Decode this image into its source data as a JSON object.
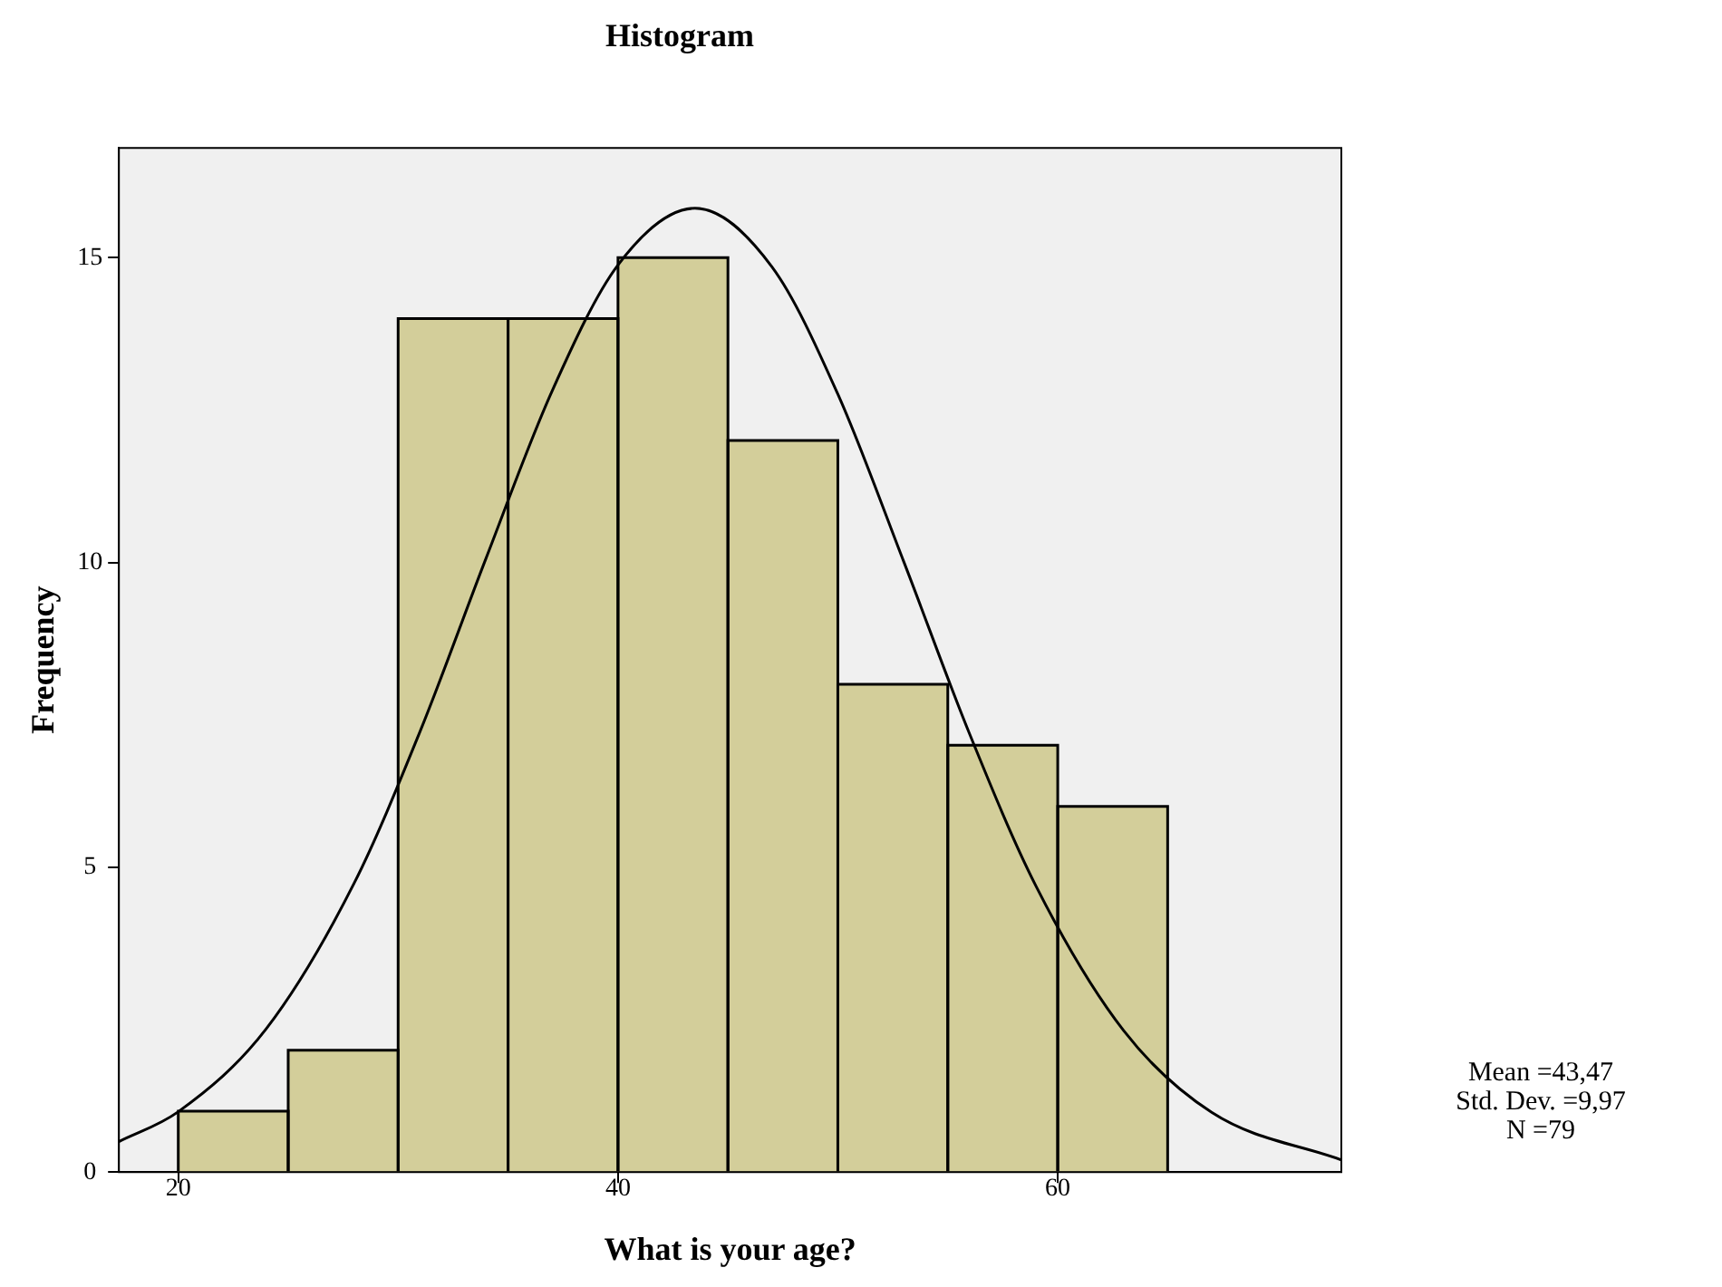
{
  "chart_data": {
    "type": "histogram",
    "title": "Histogram",
    "xlabel": "What is your age?",
    "ylabel": "Frequency",
    "bins": [
      20,
      25,
      30,
      35,
      40,
      45,
      50,
      55,
      60,
      65
    ],
    "values": [
      1,
      2,
      14,
      14,
      15,
      12,
      8,
      7,
      6
    ],
    "color": "#d3ce9a",
    "xlim": [
      17.3,
      72.9
    ],
    "ylim": [
      0,
      16.8
    ],
    "xticks": [
      20,
      40,
      60
    ],
    "yticks": [
      0,
      5,
      10,
      15
    ],
    "series": [
      {
        "type": "line",
        "color": "#000000",
        "x": [
          17.3,
          20,
          24,
          28,
          31,
          34,
          37,
          40,
          43.5,
          47,
          50,
          53,
          56,
          59,
          63,
          67,
          72.9
        ],
        "values": [
          0.5,
          0.99,
          2.35,
          4.74,
          7.23,
          10.07,
          12.81,
          14.88,
          15.81,
          14.85,
          12.76,
          10.01,
          7.18,
          4.7,
          2.32,
          0.98,
          0.2
        ]
      }
    ],
    "annotations": [
      "Mean =43,47",
      "Std. Dev. =9,97",
      "N =79"
    ]
  }
}
